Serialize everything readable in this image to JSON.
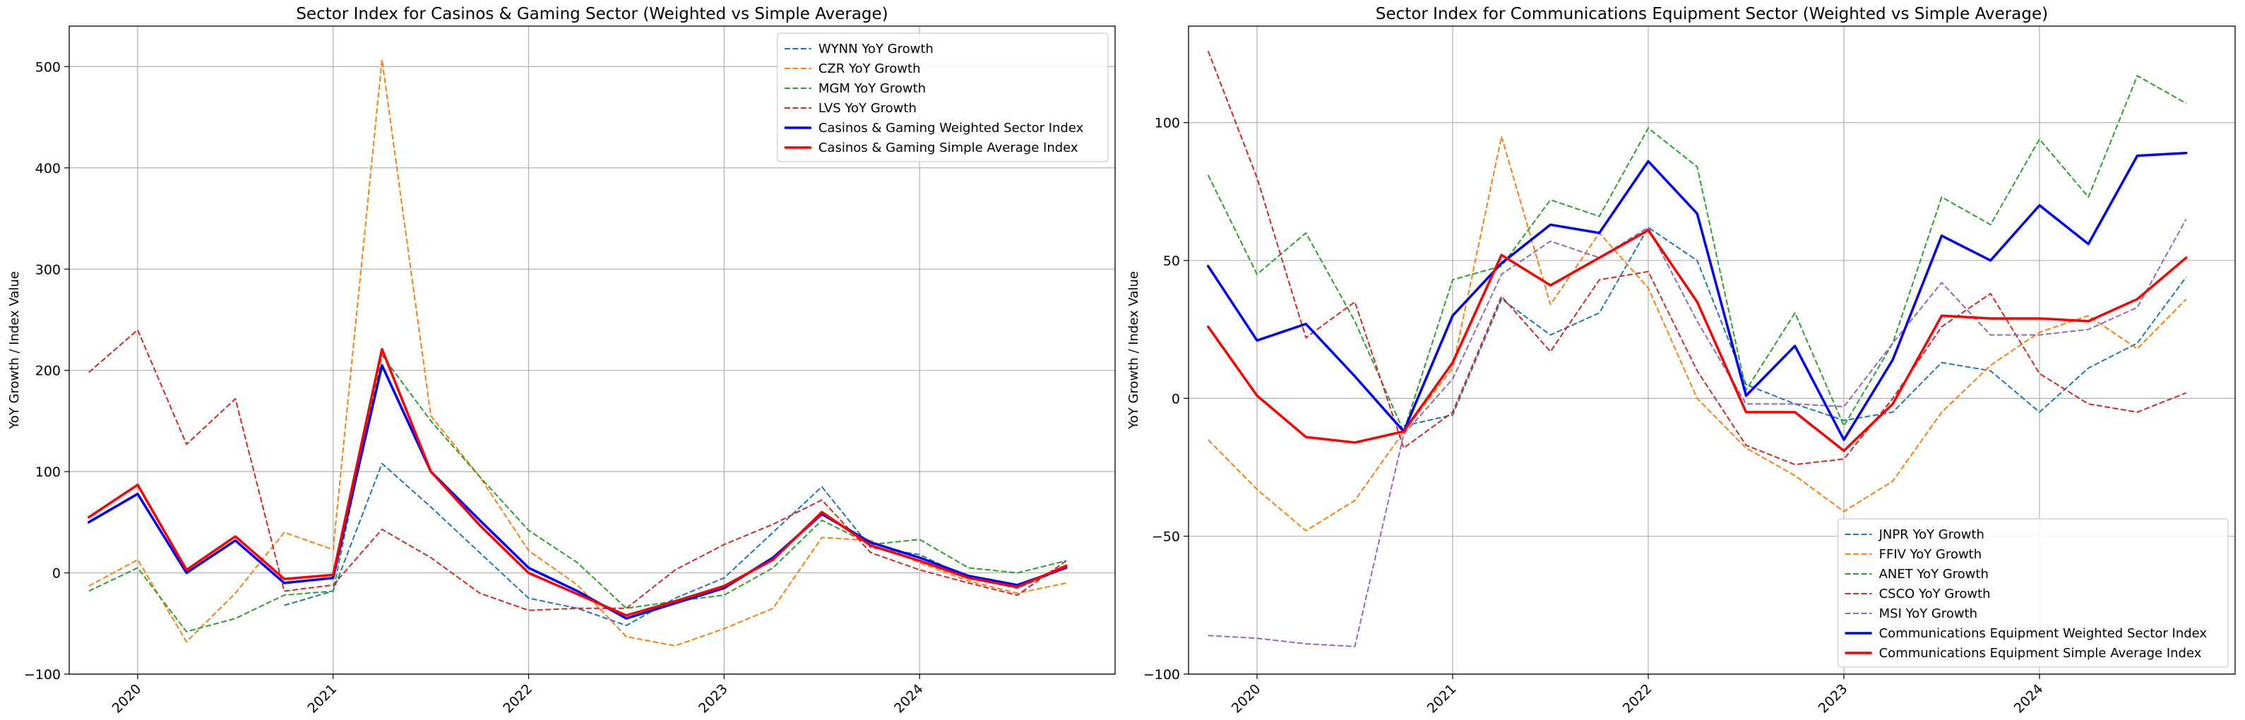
{
  "chart_data": [
    {
      "type": "line",
      "title": "Sector Index for Casinos & Gaming Sector (Weighted vs Simple Average)",
      "xlabel": "",
      "ylabel": "YoY Growth / Index Value",
      "xlim": [
        2019.65,
        2025.0
      ],
      "ylim": [
        -100,
        540
      ],
      "xticks": [
        {
          "value": 2020,
          "label": "2020"
        },
        {
          "value": 2021,
          "label": "2021"
        },
        {
          "value": 2022,
          "label": "2022"
        },
        {
          "value": 2023,
          "label": "2023"
        },
        {
          "value": 2024,
          "label": "2024"
        }
      ],
      "yticks": [
        -100,
        0,
        100,
        200,
        300,
        400,
        500
      ],
      "grid": true,
      "legend_position": "top-right",
      "series": [
        {
          "name": "WYNN YoY Growth",
          "color": "#1f77b4",
          "style": "dashed",
          "width": 2,
          "x": [
            2020.75,
            2021.0,
            2021.25,
            2021.5,
            2021.75,
            2022.0,
            2022.25,
            2022.5,
            2022.75,
            2023.0,
            2023.25,
            2023.5,
            2023.75,
            2024.0,
            2024.25,
            2024.5,
            2024.75
          ],
          "y": [
            -32,
            -18,
            108,
            65,
            20,
            -25,
            -35,
            -52,
            -25,
            -5,
            40,
            85,
            25,
            18,
            -5,
            -15,
            5
          ]
        },
        {
          "name": "CZR YoY Growth",
          "color": "#ff7f0e",
          "style": "dashed",
          "width": 2,
          "x": [
            2019.75,
            2020.0,
            2020.25,
            2020.5,
            2020.75,
            2021.0,
            2021.25,
            2021.5,
            2021.75,
            2022.0,
            2022.25,
            2022.5,
            2022.75,
            2023.0,
            2023.25,
            2023.5,
            2023.75,
            2024.0,
            2024.25,
            2024.5,
            2024.75
          ],
          "y": [
            -13,
            13,
            -68,
            -20,
            40,
            23,
            507,
            155,
            95,
            22,
            -12,
            -63,
            -72,
            -55,
            -35,
            35,
            32,
            10,
            -8,
            -20,
            -10
          ]
        },
        {
          "name": "MGM YoY Growth",
          "color": "#2ca02c",
          "style": "dashed",
          "width": 2,
          "x": [
            2019.75,
            2020.0,
            2020.25,
            2020.5,
            2020.75,
            2021.0,
            2021.25,
            2021.5,
            2021.75,
            2022.0,
            2022.25,
            2022.5,
            2022.75,
            2023.0,
            2023.25,
            2023.5,
            2023.75,
            2024.0,
            2024.25,
            2024.5,
            2024.75
          ],
          "y": [
            -18,
            5,
            -58,
            -45,
            -22,
            -18,
            215,
            150,
            95,
            42,
            10,
            -35,
            -28,
            -22,
            5,
            52,
            28,
            33,
            5,
            0,
            12
          ]
        },
        {
          "name": "LVS YoY Growth",
          "color": "#d62728",
          "style": "dashed",
          "width": 2,
          "x": [
            2019.75,
            2020.0,
            2020.25,
            2020.5,
            2020.75,
            2021.0,
            2021.25,
            2021.5,
            2021.75,
            2022.0,
            2022.25,
            2022.5,
            2022.75,
            2023.0,
            2023.25,
            2023.5,
            2023.75,
            2024.0,
            2024.25,
            2024.5,
            2024.75
          ],
          "y": [
            198,
            240,
            127,
            172,
            -18,
            -12,
            43,
            15,
            -20,
            -37,
            -35,
            -35,
            3,
            28,
            48,
            72,
            20,
            3,
            -10,
            -22,
            12
          ]
        },
        {
          "name": "Casinos & Gaming Weighted Sector Index",
          "color": "#0000ff",
          "style": "solid",
          "width": 3.5,
          "x": [
            2019.75,
            2020.0,
            2020.25,
            2020.5,
            2020.75,
            2021.0,
            2021.25,
            2021.5,
            2021.75,
            2022.0,
            2022.25,
            2022.5,
            2022.75,
            2023.0,
            2023.25,
            2023.5,
            2023.75,
            2024.0,
            2024.25,
            2024.5,
            2024.75
          ],
          "y": [
            50,
            78,
            0,
            32,
            -10,
            -5,
            205,
            100,
            52,
            5,
            -18,
            -45,
            -30,
            -15,
            15,
            58,
            30,
            15,
            -3,
            -12,
            5
          ]
        },
        {
          "name": "Casinos & Gaming Simple Average Index",
          "color": "#ff0000",
          "style": "solid",
          "width": 3.5,
          "x": [
            2019.75,
            2020.0,
            2020.25,
            2020.5,
            2020.75,
            2021.0,
            2021.25,
            2021.5,
            2021.75,
            2022.0,
            2022.25,
            2022.5,
            2022.75,
            2023.0,
            2023.25,
            2023.5,
            2023.75,
            2024.0,
            2024.25,
            2024.5,
            2024.75
          ],
          "y": [
            55,
            87,
            3,
            36,
            -6,
            -2,
            221,
            100,
            47,
            0,
            -21,
            -42,
            -28,
            -13,
            13,
            60,
            27,
            12,
            -5,
            -14,
            7
          ]
        }
      ]
    },
    {
      "type": "line",
      "title": "Sector Index for Communications Equipment Sector (Weighted vs Simple Average)",
      "xlabel": "",
      "ylabel": "YoY Growth / Index Value",
      "xlim": [
        2019.65,
        2025.0
      ],
      "ylim": [
        -100,
        135
      ],
      "xticks": [
        {
          "value": 2020,
          "label": "2020"
        },
        {
          "value": 2021,
          "label": "2021"
        },
        {
          "value": 2022,
          "label": "2022"
        },
        {
          "value": 2023,
          "label": "2023"
        },
        {
          "value": 2024,
          "label": "2024"
        }
      ],
      "yticks": [
        -100,
        -50,
        0,
        50,
        100
      ],
      "grid": true,
      "legend_position": "bottom-right",
      "series": [
        {
          "name": "JNPR YoY Growth",
          "color": "#1f77b4",
          "style": "dashed",
          "width": 2,
          "x": [
            2020.75,
            2021.0,
            2021.25,
            2021.5,
            2021.75,
            2022.0,
            2022.25,
            2022.5,
            2022.75,
            2023.0,
            2023.25,
            2023.5,
            2023.75,
            2024.0,
            2024.25,
            2024.5,
            2024.75
          ],
          "y": [
            -10,
            -6,
            36,
            23,
            31,
            62,
            50,
            5,
            -2,
            -8,
            -5,
            13,
            10,
            -5,
            11,
            20,
            44
          ]
        },
        {
          "name": "FFIV YoY Growth",
          "color": "#ff7f0e",
          "style": "dashed",
          "width": 2,
          "x": [
            2019.75,
            2020.0,
            2020.25,
            2020.5,
            2020.75,
            2021.0,
            2021.25,
            2021.5,
            2021.75,
            2022.0,
            2022.25,
            2022.5,
            2022.75,
            2023.0,
            2023.25,
            2023.5,
            2023.75,
            2024.0,
            2024.25,
            2024.5,
            2024.75
          ],
          "y": [
            -15,
            -33,
            -48,
            -37,
            -12,
            11,
            95,
            34,
            60,
            40,
            0,
            -18,
            -28,
            -41,
            -30,
            -5,
            12,
            24,
            30,
            18,
            36
          ]
        },
        {
          "name": "ANET YoY Growth",
          "color": "#2ca02c",
          "style": "dashed",
          "width": 2,
          "x": [
            2019.75,
            2020.0,
            2020.25,
            2020.5,
            2020.75,
            2021.0,
            2021.25,
            2021.5,
            2021.75,
            2022.0,
            2022.25,
            2022.5,
            2022.75,
            2023.0,
            2023.25,
            2023.5,
            2023.75,
            2024.0,
            2024.25,
            2024.5,
            2024.75
          ],
          "y": [
            81,
            45,
            60,
            28,
            -12,
            43,
            48,
            72,
            66,
            98,
            84,
            3,
            31,
            -10,
            20,
            73,
            63,
            94,
            73,
            117,
            107
          ]
        },
        {
          "name": "CSCO YoY Growth",
          "color": "#d62728",
          "style": "dashed",
          "width": 2,
          "x": [
            2019.75,
            2020.0,
            2020.25,
            2020.5,
            2020.75,
            2021.0,
            2021.25,
            2021.5,
            2021.75,
            2022.0,
            2022.25,
            2022.5,
            2022.75,
            2023.0,
            2023.25,
            2023.5,
            2023.75,
            2024.0,
            2024.25,
            2024.5,
            2024.75
          ],
          "y": [
            126,
            80,
            22,
            35,
            -18,
            -5,
            37,
            17,
            43,
            46,
            10,
            -17,
            -24,
            -22,
            0,
            26,
            38,
            9,
            -2,
            -5,
            2
          ]
        },
        {
          "name": "MSI YoY Growth",
          "color": "#9467bd",
          "style": "dashed",
          "width": 2,
          "x": [
            2019.75,
            2020.0,
            2020.25,
            2020.5,
            2020.75,
            2021.0,
            2021.25,
            2021.5,
            2021.75,
            2022.0,
            2022.25,
            2022.5,
            2022.75,
            2023.0,
            2023.25,
            2023.5,
            2023.75,
            2024.0,
            2024.25,
            2024.5,
            2024.75
          ],
          "y": [
            -86,
            -87,
            -89,
            -90,
            -13,
            7,
            45,
            57,
            51,
            62,
            28,
            -2,
            -2,
            -3,
            20,
            42,
            23,
            23,
            25,
            33,
            65
          ]
        },
        {
          "name": "Communications Equipment Weighted Sector Index",
          "color": "#0000ff",
          "style": "solid",
          "width": 3.5,
          "x": [
            2019.75,
            2020.0,
            2020.25,
            2020.5,
            2020.75,
            2021.0,
            2021.25,
            2021.5,
            2021.75,
            2022.0,
            2022.25,
            2022.5,
            2022.75,
            2023.0,
            2023.25,
            2023.5,
            2023.75,
            2024.0,
            2024.25,
            2024.5,
            2024.75
          ],
          "y": [
            48,
            21,
            27,
            8,
            -12,
            30,
            49,
            63,
            60,
            86,
            67,
            1,
            19,
            -15,
            14,
            59,
            50,
            70,
            56,
            88,
            89
          ]
        },
        {
          "name": "Communications Equipment Simple Average Index",
          "color": "#ff0000",
          "style": "solid",
          "width": 3.5,
          "x": [
            2019.75,
            2020.0,
            2020.25,
            2020.5,
            2020.75,
            2021.0,
            2021.25,
            2021.5,
            2021.75,
            2022.0,
            2022.25,
            2022.5,
            2022.75,
            2023.0,
            2023.25,
            2023.5,
            2023.75,
            2024.0,
            2024.25,
            2024.5,
            2024.75
          ],
          "y": [
            26,
            1,
            -14,
            -16,
            -12,
            13,
            52,
            41,
            51,
            61,
            35,
            -5,
            -5,
            -19,
            -2,
            30,
            29,
            29,
            28,
            36,
            51
          ]
        }
      ]
    }
  ]
}
